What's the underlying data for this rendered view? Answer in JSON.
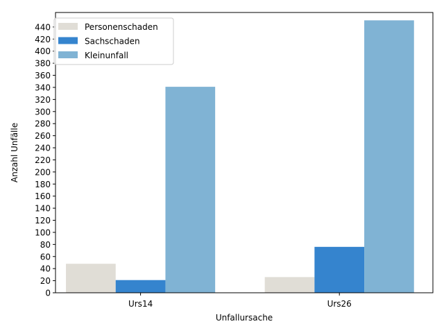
{
  "chart_data": {
    "type": "bar",
    "title": "",
    "xlabel": "Unfallursache",
    "ylabel": "Anzahl Unfälle",
    "categories": [
      "Urs14",
      "Urs26"
    ],
    "series": [
      {
        "name": "Personenschaden",
        "values": [
          48,
          26
        ],
        "color": "#e0ddd6"
      },
      {
        "name": "Sachschaden",
        "values": [
          21,
          76
        ],
        "color": "#3584ce"
      },
      {
        "name": "Kleinunfall",
        "values": [
          341,
          451
        ],
        "color": "#80b3d4"
      }
    ],
    "ylim": [
      0,
      464
    ],
    "yticks": [
      0,
      20,
      40,
      60,
      80,
      100,
      120,
      140,
      160,
      180,
      200,
      220,
      240,
      260,
      280,
      300,
      320,
      340,
      360,
      380,
      400,
      420,
      440
    ],
    "grid": false,
    "legend_position": "top-left"
  }
}
